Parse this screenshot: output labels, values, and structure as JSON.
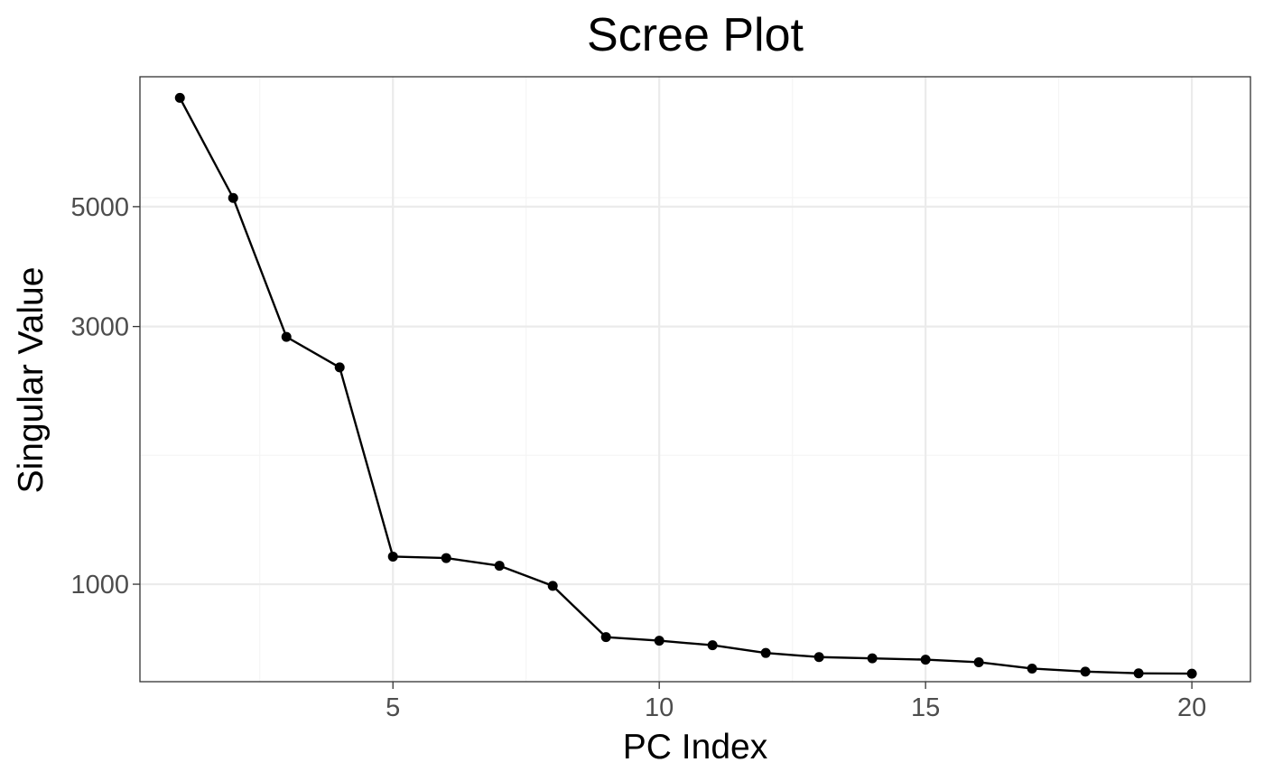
{
  "chart_data": {
    "type": "line",
    "title": "Scree Plot",
    "xlabel": "PC Index",
    "ylabel": "Singular Value",
    "y_scale": "log",
    "xlim": [
      0.25,
      21.1
    ],
    "ylim": [
      660,
      8700
    ],
    "x_ticks": [
      5,
      10,
      15,
      20
    ],
    "x_tick_labels": [
      "5",
      "10",
      "15",
      "20"
    ],
    "y_ticks": [
      1000,
      3000,
      5000
    ],
    "y_tick_labels": [
      "1000",
      "3000",
      "5000"
    ],
    "grid": true,
    "legend": "none",
    "series": [
      {
        "x": [
          1,
          2,
          3,
          4,
          5,
          6,
          7,
          8,
          9,
          10,
          11,
          12,
          13,
          14,
          15,
          16,
          17,
          18,
          19,
          20
        ],
        "values": [
          7950,
          5190,
          2870,
          2520,
          1125,
          1118,
          1082,
          993,
          798,
          786,
          771,
          746,
          733,
          729,
          725,
          717,
          698,
          689,
          684,
          683
        ]
      }
    ],
    "colors": {
      "line": "#000000",
      "point": "#000000",
      "panel_border": "#333333",
      "grid_major": "#ebebeb",
      "grid_minor": "#f5f5f5",
      "tick_label": "#4d4d4d"
    }
  }
}
